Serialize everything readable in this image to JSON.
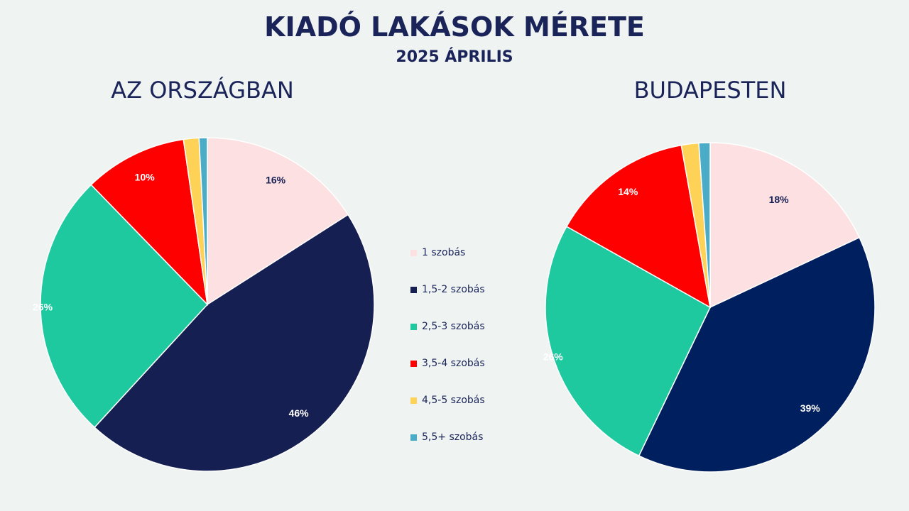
{
  "title": "KIADÓ LAKÁSOK MÉRETE",
  "subtitle": "2025 ÁPRILIS",
  "chart_data": [
    {
      "type": "pie",
      "title": "AZ ORSZÁGBAN",
      "categories": [
        "1 szobás",
        "1,5-2 szobás",
        "2,5-3 szobás",
        "3,5-4 szobás",
        "4,5-5 szobás",
        "5,5+ szobás"
      ],
      "values": [
        16,
        46,
        26,
        10,
        1.5,
        0.8
      ],
      "labels": [
        "16%",
        "46%",
        "26%",
        "10%",
        "",
        ""
      ],
      "colors": [
        "#fde0e1",
        "#161f52",
        "#1fc9a0",
        "#fe0000",
        "#fdd257",
        "#4aacc6"
      ],
      "label_colors": [
        "#161f52",
        "#ffffff",
        "#ffffff",
        "#ffffff",
        "#ffffff",
        "#ffffff"
      ]
    },
    {
      "type": "pie",
      "title": "BUDAPESTEN",
      "categories": [
        "1 szobás",
        "1,5-2 szobás",
        "2,5-3 szobás",
        "3,5-4 szobás",
        "4,5-5 szobás",
        "5,5+ szobás"
      ],
      "values": [
        18,
        39,
        26,
        14,
        1.7,
        1.1
      ],
      "labels": [
        "18%",
        "39%",
        "26%",
        "14%",
        "",
        ""
      ],
      "colors": [
        "#fde0e1",
        "#001f5e",
        "#1fc9a0",
        "#fe0000",
        "#fdd257",
        "#4aacc6"
      ],
      "label_colors": [
        "#161f52",
        "#ffffff",
        "#ffffff",
        "#ffffff",
        "#ffffff",
        "#ffffff"
      ]
    }
  ],
  "legend": [
    {
      "label": "1 szobás",
      "color": "#fde0e1"
    },
    {
      "label": "1,5-2 szobás",
      "color": "#161f52"
    },
    {
      "label": "2,5-3 szobás",
      "color": "#1fc9a0"
    },
    {
      "label": "3,5-4 szobás",
      "color": "#fe0000"
    },
    {
      "label": "4,5-5 szobás",
      "color": "#fdd257"
    },
    {
      "label": "5,5+ szobás",
      "color": "#4aacc6"
    }
  ]
}
